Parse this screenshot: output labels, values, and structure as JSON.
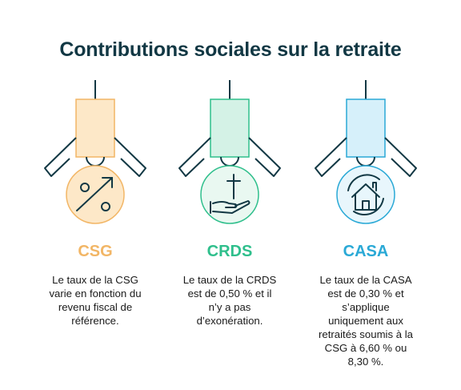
{
  "title": "Contributions sociales sur la retraite",
  "items": [
    {
      "label": "CSG",
      "color": "#f2b666",
      "icon": "percent-trend-icon",
      "lines": [
        "Le taux de la CSG",
        "varie en fonction du",
        "revenu fiscal de",
        "référence."
      ]
    },
    {
      "label": "CRDS",
      "color": "#2fbf8c",
      "icon": "hand-cross-icon",
      "lines": [
        "Le taux de la CRDS",
        "est de 0,50 % et il",
        "n’y a pas",
        "d’exonération."
      ]
    },
    {
      "label": "CASA",
      "color": "#2aa9d6",
      "icon": "house-care-icon",
      "lines": [
        "Le taux de la CASA",
        "est de 0,30 % et",
        "s’applique",
        "uniquement aux",
        "retraités soumis à la",
        "CSG à 6,60 % ou",
        "8,30 %."
      ]
    }
  ]
}
